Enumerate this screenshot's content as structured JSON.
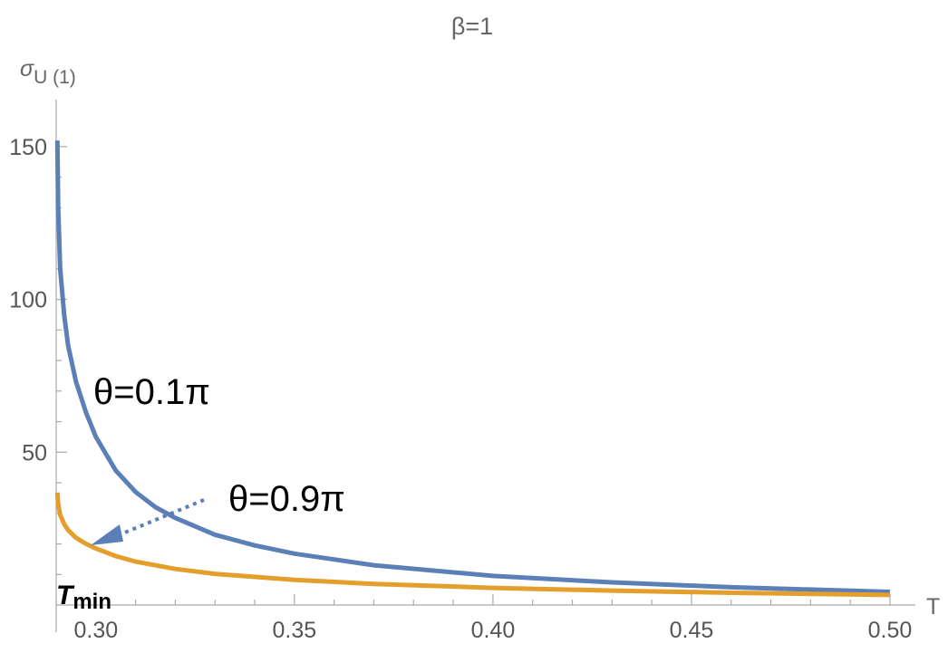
{
  "chart_data": {
    "type": "line",
    "title": "β=1",
    "xlabel": "T",
    "ylabel": "σU (1)",
    "ylabel_main": "σ",
    "ylabel_sub": "U (1)",
    "xlim": [
      0.29,
      0.5
    ],
    "ylim": [
      0,
      155
    ],
    "x_ticks": [
      0.3,
      0.35,
      0.4,
      0.45,
      0.5
    ],
    "x_tick_labels": [
      "0.30",
      "0.35",
      "0.40",
      "0.45",
      "0.50"
    ],
    "y_ticks": [
      50,
      100,
      150
    ],
    "y_tick_labels": [
      "50",
      "100",
      "150"
    ],
    "grid": false,
    "series": [
      {
        "name": "θ=0.1π",
        "color": "#5b7fb7",
        "x": [
          0.2903,
          0.2905,
          0.291,
          0.292,
          0.293,
          0.295,
          0.2975,
          0.3,
          0.305,
          0.31,
          0.315,
          0.32,
          0.33,
          0.34,
          0.35,
          0.37,
          0.4,
          0.43,
          0.46,
          0.5
        ],
        "y": [
          152,
          130,
          110,
          95,
          85,
          73,
          63,
          55,
          44,
          37,
          32,
          28.5,
          23,
          19.5,
          16.8,
          13,
          9.5,
          7.4,
          5.8,
          4.3
        ]
      },
      {
        "name": "θ=0.9π",
        "color": "#e39e2c",
        "x": [
          0.2903,
          0.2905,
          0.291,
          0.292,
          0.293,
          0.295,
          0.2975,
          0.3,
          0.305,
          0.31,
          0.32,
          0.33,
          0.35,
          0.37,
          0.4,
          0.43,
          0.46,
          0.5
        ],
        "y": [
          36.8,
          33,
          29.5,
          26.5,
          24.5,
          22,
          20,
          18.5,
          16,
          14.2,
          11.8,
          10.2,
          8.2,
          6.9,
          5.6,
          4.7,
          4.0,
          3.3
        ]
      }
    ],
    "annotations": [
      {
        "text": "θ=0.1π",
        "target": "series-1"
      },
      {
        "text": "θ=0.9π",
        "target": "series-2",
        "arrow": true
      },
      {
        "text": "T",
        "sub": "min"
      }
    ],
    "tmin_main": "T",
    "tmin_sub": "min"
  }
}
